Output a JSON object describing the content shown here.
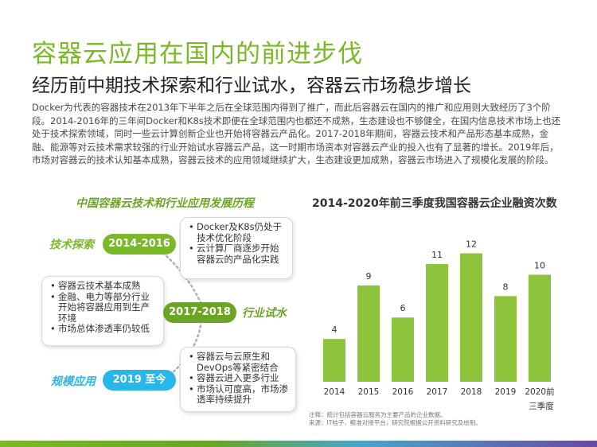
{
  "title": "容器云应用在国内的前进步伐",
  "subtitle": "经历前中期技术探索和行业试水，容器云市场稳步增长",
  "body": "Docker为代表的容器技术在2013年下半年之后在全球范围内得到了推广，而此后容器云在国内的推广和应用则大致经历了3个阶段。2014-2016年的三年间Docker和K8s技术即便在全球范围内也都还不成熟，生态建设也不够健全，在国内信息技术市场上也还处于技术探索领域，同时一些云计算创新企业也开始将容器云产品化。2017-2018年期间，容器云技术和产品形态基本成熟，金融、能源等对云技术需求较强的行业开始试水容器云产品，这一时期市场资本对容器云产业的投入也有了显著的增长。2019年后，市场对容器云的技术认知基本成熟，容器云技术的应用领域继续扩大，生态建设更加成熟，容器云市场进入了规模化发展的阶段。",
  "timeline": {
    "title": "中国容器云技术和行业应用发展历程",
    "stages": [
      {
        "label": "技术探索",
        "years": "2014-2016",
        "color": "#7ab829",
        "items": [
          "Docker及K8s仍处于技术优化阶段",
          "云计算厂商逐步开始 容器云的产品化实践"
        ]
      },
      {
        "label": "行业试水",
        "years": "2017-2018",
        "color": "#6aa624",
        "items": [
          "容器云技术基本成熟",
          "金融、电力等部分行业开始将容器应用到生产环境",
          "市场总体渗透率仍较低"
        ]
      },
      {
        "label": "规模应用",
        "years": "2019 至今",
        "color": "#29b6e8",
        "items": [
          "容器云与云原生和DevOps等紧密结合",
          "容器云进入更多行业",
          "市场认可度高，市场渗透率持续提升"
        ]
      }
    ]
  },
  "chart_data": {
    "type": "bar",
    "title": "2014-2020年前三季度我国容器云企业融资次数",
    "categories": [
      "2014",
      "2015",
      "2016",
      "2017",
      "2018",
      "2019",
      "2020前三季度"
    ],
    "category_lines": [
      [
        "2014"
      ],
      [
        "2015"
      ],
      [
        "2016"
      ],
      [
        "2017"
      ],
      [
        "2018"
      ],
      [
        "2019"
      ],
      [
        "2020前",
        "三季度"
      ]
    ],
    "values": [
      4,
      9,
      6,
      11,
      12,
      8,
      10
    ],
    "ylim": [
      0,
      13
    ],
    "color": "#8cc43c",
    "grid": false,
    "notes": [
      "注释：统计包括容器云服务为主要产品的企业数据。",
      "来源：IT桔子，鲸准对接平台，研究院根据公开资料研究及绘制。"
    ]
  }
}
